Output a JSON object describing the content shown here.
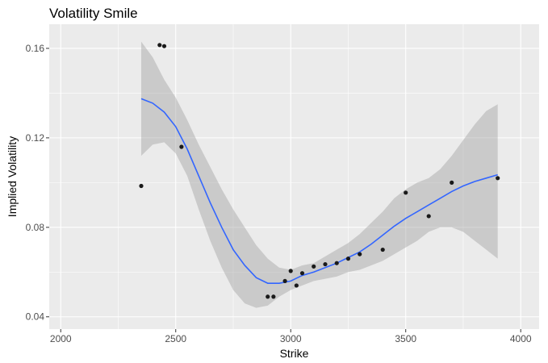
{
  "chart_data": {
    "type": "scatter",
    "title": "Volatility Smile",
    "xlabel": "Strike",
    "ylabel": "Implied Volatility",
    "xlim": [
      1950,
      4080
    ],
    "ylim": [
      0.0345,
      0.1708
    ],
    "x_ticks": [
      2000,
      2500,
      3000,
      3500,
      4000
    ],
    "x_tick_labels": [
      "2000",
      "2500",
      "3000",
      "3500",
      "4000"
    ],
    "y_ticks": [
      0.04,
      0.08,
      0.12,
      0.16
    ],
    "y_tick_labels": [
      "0.04",
      "0.08",
      "0.12",
      "0.16"
    ],
    "grid": true,
    "legend": "none",
    "colors": {
      "panel_bg": "#ebebeb",
      "grid_major": "#ffffff",
      "points": "#1a1a1a",
      "smooth_line": "#3366ff",
      "ribbon": "#999999"
    },
    "points": [
      {
        "x": 2350,
        "y": 0.0985
      },
      {
        "x": 2430,
        "y": 0.1615
      },
      {
        "x": 2450,
        "y": 0.161
      },
      {
        "x": 2525,
        "y": 0.116
      },
      {
        "x": 2900,
        "y": 0.049
      },
      {
        "x": 2925,
        "y": 0.049
      },
      {
        "x": 2975,
        "y": 0.056
      },
      {
        "x": 3000,
        "y": 0.0605
      },
      {
        "x": 3025,
        "y": 0.054
      },
      {
        "x": 3050,
        "y": 0.0595
      },
      {
        "x": 3100,
        "y": 0.0625
      },
      {
        "x": 3150,
        "y": 0.0635
      },
      {
        "x": 3200,
        "y": 0.064
      },
      {
        "x": 3250,
        "y": 0.066
      },
      {
        "x": 3300,
        "y": 0.068
      },
      {
        "x": 3400,
        "y": 0.07
      },
      {
        "x": 3500,
        "y": 0.0955
      },
      {
        "x": 3600,
        "y": 0.085
      },
      {
        "x": 3700,
        "y": 0.1
      },
      {
        "x": 3900,
        "y": 0.102
      }
    ],
    "smooth_fit": {
      "method": "loess",
      "curve": [
        {
          "x": 2350,
          "y": 0.1375,
          "lower": 0.112,
          "upper": 0.163
        },
        {
          "x": 2400,
          "y": 0.1355,
          "lower": 0.117,
          "upper": 0.156
        },
        {
          "x": 2450,
          "y": 0.1315,
          "lower": 0.118,
          "upper": 0.146
        },
        {
          "x": 2500,
          "y": 0.125,
          "lower": 0.113,
          "upper": 0.138
        },
        {
          "x": 2550,
          "y": 0.115,
          "lower": 0.103,
          "upper": 0.128
        },
        {
          "x": 2600,
          "y": 0.103,
          "lower": 0.088,
          "upper": 0.117
        },
        {
          "x": 2650,
          "y": 0.091,
          "lower": 0.074,
          "upper": 0.107
        },
        {
          "x": 2700,
          "y": 0.08,
          "lower": 0.062,
          "upper": 0.097
        },
        {
          "x": 2750,
          "y": 0.07,
          "lower": 0.052,
          "upper": 0.088
        },
        {
          "x": 2800,
          "y": 0.063,
          "lower": 0.046,
          "upper": 0.08
        },
        {
          "x": 2850,
          "y": 0.0575,
          "lower": 0.044,
          "upper": 0.072
        },
        {
          "x": 2900,
          "y": 0.055,
          "lower": 0.045,
          "upper": 0.066
        },
        {
          "x": 2950,
          "y": 0.055,
          "lower": 0.049,
          "upper": 0.062
        },
        {
          "x": 3000,
          "y": 0.056,
          "lower": 0.052,
          "upper": 0.061
        },
        {
          "x": 3050,
          "y": 0.0585,
          "lower": 0.054,
          "upper": 0.063
        },
        {
          "x": 3100,
          "y": 0.06,
          "lower": 0.056,
          "upper": 0.064
        },
        {
          "x": 3150,
          "y": 0.062,
          "lower": 0.057,
          "upper": 0.067
        },
        {
          "x": 3200,
          "y": 0.064,
          "lower": 0.058,
          "upper": 0.07
        },
        {
          "x": 3250,
          "y": 0.0665,
          "lower": 0.06,
          "upper": 0.073
        },
        {
          "x": 3300,
          "y": 0.069,
          "lower": 0.061,
          "upper": 0.077
        },
        {
          "x": 3350,
          "y": 0.0725,
          "lower": 0.063,
          "upper": 0.082
        },
        {
          "x": 3400,
          "y": 0.0765,
          "lower": 0.065,
          "upper": 0.087
        },
        {
          "x": 3450,
          "y": 0.0805,
          "lower": 0.068,
          "upper": 0.093
        },
        {
          "x": 3500,
          "y": 0.084,
          "lower": 0.071,
          "upper": 0.097
        },
        {
          "x": 3550,
          "y": 0.087,
          "lower": 0.074,
          "upper": 0.1
        },
        {
          "x": 3600,
          "y": 0.09,
          "lower": 0.078,
          "upper": 0.102
        },
        {
          "x": 3650,
          "y": 0.093,
          "lower": 0.08,
          "upper": 0.106
        },
        {
          "x": 3700,
          "y": 0.096,
          "lower": 0.08,
          "upper": 0.112
        },
        {
          "x": 3750,
          "y": 0.0985,
          "lower": 0.078,
          "upper": 0.119
        },
        {
          "x": 3800,
          "y": 0.1005,
          "lower": 0.074,
          "upper": 0.126
        },
        {
          "x": 3850,
          "y": 0.102,
          "lower": 0.07,
          "upper": 0.132
        },
        {
          "x": 3900,
          "y": 0.1035,
          "lower": 0.066,
          "upper": 0.135
        }
      ]
    }
  }
}
